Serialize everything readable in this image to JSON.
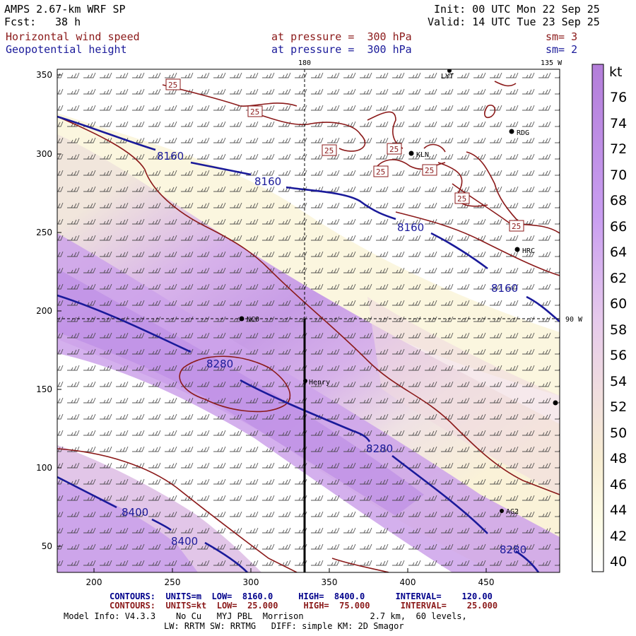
{
  "header": {
    "model": "AMPS 2.67-km WRF SP",
    "forecast_label": "Fcst:",
    "forecast_hours": "38 h",
    "init_line": "Init: 00 UTC Mon 22 Sep 25",
    "valid_line": "Valid: 14 UTC Tue 23 Sep 25",
    "field1_name": "Horizontal wind speed",
    "field1_level": "at pressure =  300 hPa",
    "field1_sm": "sm= 3",
    "field2_name": "Geopotential height",
    "field2_level": "at pressure =  300 hPa",
    "field2_sm": "sm= 2"
  },
  "map": {
    "meridian_top_label": "180",
    "meridian_135_label": "135 W",
    "meridian_90_label": "90 W",
    "x_ticks": [
      "200",
      "250",
      "300",
      "350",
      "400",
      "450"
    ],
    "y_ticks": [
      "350",
      "300",
      "250",
      "200",
      "150",
      "100",
      "50"
    ],
    "height_contour_labels": [
      "8160",
      "8160",
      "8160",
      "8160",
      "8280",
      "8280",
      "8280",
      "8400",
      "8400"
    ],
    "wind_contour_label": "25",
    "stations": [
      "LYT",
      "RDG",
      "KLN",
      "HRC",
      "NCO",
      "Henry",
      "AG2"
    ],
    "colorbar_unit": "kt",
    "colorbar_ticks": [
      "76",
      "74",
      "72",
      "70",
      "68",
      "66",
      "64",
      "62",
      "60",
      "58",
      "56",
      "54",
      "52",
      "50",
      "48",
      "46",
      "44",
      "42",
      "40"
    ],
    "colors": {
      "wind_contour": "#8b1a1a",
      "height_contour": "#1a1a9a",
      "high_wind": "#b37ed9",
      "low_wind": "#fdfbe6"
    }
  },
  "footer": {
    "contours1": "CONTOURS:  UNITS=m  LOW=  8160.0     HIGH=  8400.0      INTERVAL=    120.00",
    "contours2": "CONTOURS:  UNITS=kt  LOW=  25.000     HIGH=  75.000      INTERVAL=    25.000",
    "model_info": "Model Info: V4.3.3    No Cu   MYJ PBL  Morrison             2.7 km,  60 levels,",
    "physics": "LW: RRTM SW: RRTMG   DIFF: simple KM: 2D Smagor"
  }
}
